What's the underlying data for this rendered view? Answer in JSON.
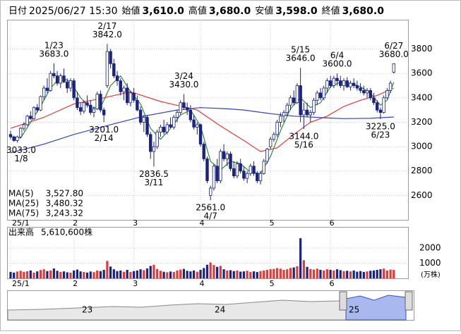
{
  "chart_data": {
    "type": "candlestick",
    "header": [
      {
        "label": "日付",
        "value": "2025/06/27 15:30"
      },
      {
        "label": "始値",
        "value": "3,610.0",
        "color": "#000000"
      },
      {
        "label": "高値",
        "value": "3,680.0",
        "color": "#e00000"
      },
      {
        "label": "安値",
        "value": "3,598.0",
        "color": "#008000"
      },
      {
        "label": "終値",
        "value": "3,680.0",
        "color": "#000000"
      }
    ],
    "ohlc": [
      [
        3100,
        3130,
        3060,
        3080
      ],
      [
        3080,
        3090,
        3040,
        3050
      ],
      [
        3050,
        3090,
        3033,
        3080
      ],
      [
        3080,
        3160,
        3070,
        3150
      ],
      [
        3150,
        3200,
        3130,
        3180
      ],
      [
        3180,
        3260,
        3170,
        3250
      ],
      [
        3250,
        3290,
        3220,
        3230
      ],
      [
        3230,
        3330,
        3220,
        3320
      ],
      [
        3320,
        3350,
        3280,
        3300
      ],
      [
        3300,
        3420,
        3290,
        3410
      ],
      [
        3410,
        3500,
        3380,
        3480
      ],
      [
        3480,
        3560,
        3440,
        3460
      ],
      [
        3460,
        3620,
        3450,
        3600
      ],
      [
        3600,
        3683,
        3560,
        3580
      ],
      [
        3580,
        3620,
        3500,
        3520
      ],
      [
        3520,
        3600,
        3480,
        3580
      ],
      [
        3580,
        3640,
        3520,
        3530
      ],
      [
        3530,
        3560,
        3440,
        3480
      ],
      [
        3480,
        3560,
        3450,
        3540
      ],
      [
        3540,
        3560,
        3380,
        3400
      ],
      [
        3400,
        3450,
        3300,
        3320
      ],
      [
        3320,
        3360,
        3260,
        3290
      ],
      [
        3290,
        3380,
        3270,
        3360
      ],
      [
        3360,
        3420,
        3320,
        3340
      ],
      [
        3340,
        3380,
        3260,
        3280
      ],
      [
        3280,
        3330,
        3240,
        3310
      ],
      [
        3310,
        3450,
        3300,
        3430
      ],
      [
        3430,
        3460,
        3280,
        3300
      ],
      [
        3300,
        3320,
        3201,
        3260
      ],
      [
        3500,
        3842,
        3480,
        3780
      ],
      [
        3780,
        3800,
        3640,
        3680
      ],
      [
        3680,
        3720,
        3560,
        3580
      ],
      [
        3580,
        3620,
        3500,
        3540
      ],
      [
        3540,
        3560,
        3420,
        3450
      ],
      [
        3450,
        3500,
        3380,
        3480
      ],
      [
        3480,
        3520,
        3340,
        3360
      ],
      [
        3360,
        3460,
        3330,
        3440
      ],
      [
        3440,
        3480,
        3360,
        3380
      ],
      [
        3380,
        3420,
        3290,
        3300
      ],
      [
        3300,
        3330,
        3180,
        3200
      ],
      [
        3200,
        3260,
        3120,
        3240
      ],
      [
        3240,
        3260,
        3080,
        3100
      ],
      [
        3100,
        3120,
        2900,
        2960
      ],
      [
        2960,
        3040,
        2836.5,
        3000
      ],
      [
        3000,
        3140,
        2980,
        3120
      ],
      [
        3120,
        3180,
        3080,
        3160
      ],
      [
        3160,
        3220,
        3100,
        3120
      ],
      [
        3120,
        3200,
        3100,
        3180
      ],
      [
        3180,
        3240,
        3150,
        3160
      ],
      [
        3160,
        3260,
        3140,
        3240
      ],
      [
        3240,
        3300,
        3200,
        3280
      ],
      [
        3280,
        3380,
        3260,
        3360
      ],
      [
        3360,
        3430,
        3300,
        3320
      ],
      [
        3320,
        3360,
        3260,
        3300
      ],
      [
        3300,
        3340,
        3200,
        3220
      ],
      [
        3220,
        3260,
        3140,
        3160
      ],
      [
        3160,
        3200,
        3100,
        3180
      ],
      [
        3180,
        3190,
        3000,
        3020
      ],
      [
        3020,
        3040,
        2880,
        2900
      ],
      [
        2900,
        2920,
        2700,
        2720
      ],
      [
        2600,
        2680,
        2561,
        2660
      ],
      [
        2660,
        2860,
        2640,
        2840
      ],
      [
        2840,
        2900,
        2700,
        2720
      ],
      [
        2720,
        2980,
        2700,
        2960
      ],
      [
        2960,
        3020,
        2880,
        2900
      ],
      [
        2900,
        2960,
        2840,
        2940
      ],
      [
        2940,
        2960,
        2800,
        2820
      ],
      [
        2820,
        2880,
        2740,
        2760
      ],
      [
        2760,
        2880,
        2740,
        2860
      ],
      [
        2860,
        2900,
        2780,
        2800
      ],
      [
        2800,
        2840,
        2720,
        2740
      ],
      [
        2740,
        2800,
        2700,
        2780
      ],
      [
        2780,
        2860,
        2760,
        2840
      ],
      [
        2840,
        2880,
        2760,
        2780
      ],
      [
        2780,
        2800,
        2700,
        2720
      ],
      [
        2720,
        2800,
        2690,
        2780
      ],
      [
        2780,
        2900,
        2770,
        2880
      ],
      [
        2880,
        2990,
        2860,
        2980
      ],
      [
        3000,
        3080,
        2980,
        3060
      ],
      [
        3060,
        3120,
        3040,
        3100
      ],
      [
        3100,
        3220,
        3080,
        3200
      ],
      [
        3200,
        3280,
        3160,
        3250
      ],
      [
        3250,
        3300,
        3200,
        3280
      ],
      [
        3280,
        3360,
        3250,
        3340
      ],
      [
        3340,
        3420,
        3300,
        3400
      ],
      [
        3400,
        3460,
        3340,
        3360
      ],
      [
        3360,
        3520,
        3350,
        3500
      ],
      [
        3500,
        3646,
        3200,
        3260
      ],
      [
        3260,
        3360,
        3144,
        3300
      ],
      [
        3300,
        3360,
        3240,
        3260
      ],
      [
        3260,
        3300,
        3200,
        3280
      ],
      [
        3280,
        3400,
        3260,
        3380
      ],
      [
        3380,
        3460,
        3340,
        3440
      ],
      [
        3440,
        3480,
        3380,
        3400
      ],
      [
        3400,
        3500,
        3380,
        3480
      ],
      [
        3480,
        3560,
        3440,
        3540
      ],
      [
        3540,
        3580,
        3480,
        3500
      ],
      [
        3500,
        3580,
        3480,
        3560
      ],
      [
        3560,
        3600,
        3500,
        3540
      ],
      [
        3540,
        3580,
        3480,
        3500
      ],
      [
        3500,
        3560,
        3460,
        3540
      ],
      [
        3540,
        3570,
        3480,
        3490
      ],
      [
        3490,
        3540,
        3460,
        3520
      ],
      [
        3520,
        3560,
        3480,
        3500
      ],
      [
        3500,
        3540,
        3460,
        3480
      ],
      [
        3480,
        3520,
        3440,
        3460
      ],
      [
        3460,
        3500,
        3420,
        3440
      ],
      [
        3440,
        3480,
        3400,
        3460
      ],
      [
        3460,
        3480,
        3380,
        3400
      ],
      [
        3400,
        3440,
        3340,
        3360
      ],
      [
        3360,
        3380,
        3280,
        3300
      ],
      [
        3300,
        3320,
        3225,
        3280
      ],
      [
        3280,
        3420,
        3270,
        3400
      ],
      [
        3400,
        3480,
        3390,
        3460
      ],
      [
        3460,
        3540,
        3440,
        3520
      ],
      [
        3610,
        3680,
        3598,
        3680
      ]
    ],
    "up_color": "#ffffff",
    "down_color": "#1a237e",
    "month_ticks": [
      {
        "value": 0,
        "label": "25/1"
      },
      {
        "value": 19,
        "label": "2"
      },
      {
        "value": 37,
        "label": "3"
      },
      {
        "value": 57,
        "label": "4"
      },
      {
        "value": 78,
        "label": "5"
      },
      {
        "value": 96,
        "label": "6"
      }
    ],
    "ylim": [
      2400,
      4040
    ],
    "yticks": [
      2600,
      2800,
      3000,
      3200,
      3400,
      3600,
      3800
    ],
    "grid": true,
    "moving_averages": [
      {
        "name": "MA(5)",
        "color": "#2e8b2e",
        "last_label": "3,527.80",
        "x": [
          0,
          3,
          6,
          9,
          12,
          15,
          18,
          21,
          24,
          27,
          30,
          33,
          36,
          39,
          42,
          45,
          48,
          51,
          54,
          57,
          60,
          63,
          66,
          69,
          72,
          75,
          78,
          81,
          84,
          87,
          90,
          93,
          96,
          99,
          102,
          105,
          108,
          111,
          113,
          115
        ],
        "values": [
          3080,
          3070,
          3200,
          3330,
          3480,
          3570,
          3530,
          3400,
          3320,
          3320,
          3500,
          3580,
          3450,
          3350,
          3150,
          3060,
          3150,
          3260,
          3300,
          3170,
          2880,
          2810,
          2880,
          2860,
          2790,
          2780,
          2920,
          3130,
          3310,
          3400,
          3320,
          3360,
          3490,
          3530,
          3520,
          3490,
          3440,
          3340,
          3380,
          3528
        ]
      },
      {
        "name": "MA(25)",
        "color": "#e53935",
        "last_label": "3,480.32",
        "x": [
          0,
          10,
          19,
          28,
          36,
          45,
          56,
          63,
          70,
          75,
          80,
          85,
          90,
          95,
          100,
          105,
          110,
          115
        ],
        "values": [
          3150,
          3240,
          3350,
          3400,
          3450,
          3370,
          3300,
          3170,
          3050,
          2960,
          2990,
          3100,
          3200,
          3250,
          3330,
          3380,
          3420,
          3480
        ]
      },
      {
        "name": "MA(75)",
        "color": "#3040d0",
        "last_label": "3,243.32",
        "x": [
          0,
          10,
          19,
          30,
          40,
          50,
          57,
          65,
          70,
          78,
          85,
          95,
          100,
          108,
          115
        ],
        "values": [
          2950,
          3020,
          3100,
          3180,
          3250,
          3300,
          3320,
          3310,
          3300,
          3270,
          3250,
          3235,
          3230,
          3232,
          3243
        ]
      }
    ],
    "annotations": [
      {
        "date": "1/8",
        "label": "3033.0",
        "index": 2,
        "value": 3033,
        "pos": "below"
      },
      {
        "date": "1/23",
        "label": "3683.0",
        "index": 13,
        "value": 3683,
        "pos": "above"
      },
      {
        "date": "2/14",
        "label": "3201.0",
        "index": 28,
        "value": 3201,
        "pos": "below"
      },
      {
        "date": "2/17",
        "label": "3842.0",
        "index": 29,
        "value": 3842,
        "pos": "above"
      },
      {
        "date": "3/11",
        "label": "2836.5",
        "index": 43,
        "value": 2836.5,
        "pos": "below"
      },
      {
        "date": "3/24",
        "label": "3430.0",
        "index": 52,
        "value": 3430,
        "pos": "above"
      },
      {
        "date": "4/7",
        "label": "2561.0",
        "index": 60,
        "value": 2561,
        "pos": "below"
      },
      {
        "date": "5/15",
        "label": "3646.0",
        "index": 87,
        "value": 3646,
        "pos": "above"
      },
      {
        "date": "5/16",
        "label": "3144.0",
        "index": 88,
        "value": 3144,
        "pos": "below"
      },
      {
        "date": "6/4",
        "label": "3600.0",
        "index": 98,
        "value": 3600,
        "pos": "above"
      },
      {
        "date": "6/23",
        "label": "3225.0",
        "index": 111,
        "value": 3225,
        "pos": "below"
      },
      {
        "date": "6/27",
        "label": "3680.0",
        "index": 115,
        "value": 3680,
        "pos": "above"
      }
    ],
    "volume_title": "出来高",
    "volume_label": "5,610,600株",
    "volume_unit": "(万株)",
    "volume": [
      420,
      380,
      450,
      500,
      430,
      470,
      520,
      380,
      460,
      550,
      600,
      480,
      520,
      650,
      500,
      420,
      460,
      400,
      380,
      520,
      580,
      460,
      420,
      380,
      450,
      410,
      520,
      480,
      560,
      1150,
      780,
      600,
      480,
      520,
      430,
      560,
      420,
      480,
      520,
      600,
      540,
      650,
      820,
      900,
      620,
      500,
      430,
      400,
      450,
      420,
      520,
      580,
      620,
      500,
      460,
      520,
      430,
      560,
      680,
      900,
      1050,
      880,
      760,
      820,
      600,
      520,
      540,
      480,
      520,
      440,
      460,
      500,
      420,
      460,
      420,
      480,
      520,
      560,
      600,
      620,
      680,
      640,
      560,
      600,
      680,
      720,
      800,
      2650,
      1200,
      760,
      620,
      580,
      640,
      560,
      520,
      600,
      560,
      520,
      600,
      540,
      480,
      500,
      460,
      520,
      440,
      480,
      420,
      460,
      500,
      520,
      560,
      600,
      640,
      520,
      580,
      561.06
    ],
    "volume_up_color": "#e53935",
    "volume_down_color": "#1a237e",
    "vlim": [
      0,
      3400
    ],
    "vticks": [
      1000,
      2000
    ],
    "navigator_labels": [
      "23",
      "24",
      "25"
    ]
  }
}
